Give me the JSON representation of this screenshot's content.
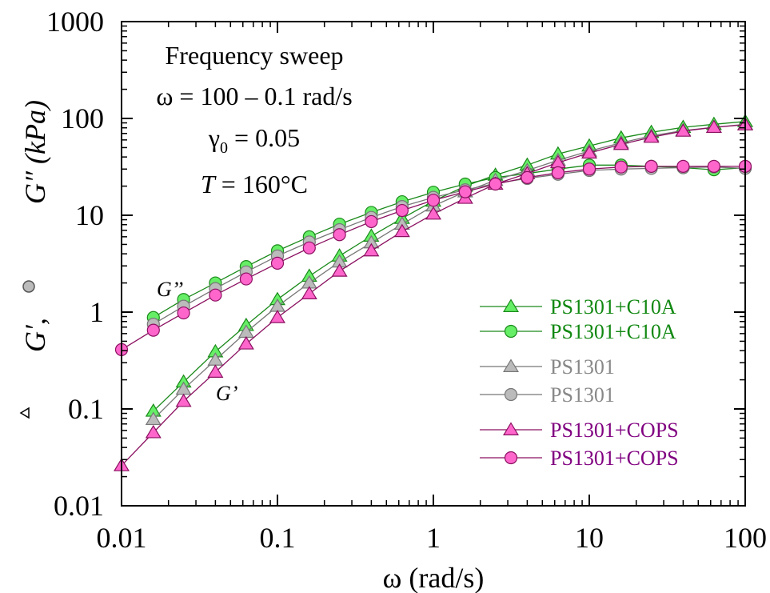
{
  "chart_data": {
    "type": "scatter",
    "title": "",
    "xlabel": "ω (rad/s)",
    "ylabel_parts": {
      "prefix": "G′,",
      "suffix": "G″ (kPa)"
    },
    "x_scale": "log",
    "y_scale": "log",
    "xlim": [
      0.01,
      100
    ],
    "ylim": [
      0.01,
      1000
    ],
    "x_ticks": [
      {
        "value": 0.01,
        "label": "0.01"
      },
      {
        "value": 0.1,
        "label": "0.1"
      },
      {
        "value": 1,
        "label": "1"
      },
      {
        "value": 10,
        "label": "10"
      },
      {
        "value": 100,
        "label": "100"
      }
    ],
    "y_ticks": [
      {
        "value": 0.01,
        "label": "0.01"
      },
      {
        "value": 0.1,
        "label": "0.1"
      },
      {
        "value": 1,
        "label": "1"
      },
      {
        "value": 10,
        "label": "10"
      },
      {
        "value": 100,
        "label": "100"
      },
      {
        "value": 1000,
        "label": "1000"
      }
    ],
    "grid": false,
    "legend_position": "lower-right",
    "annotations": {
      "line1": "Frequency sweep",
      "line2": "ω = 100 – 0.1 rad/s",
      "line3_symbol": "γ",
      "line3_sub": "0",
      "line3_value": " = 0.05",
      "line4_var": "T",
      "line4_value": " = 160°C",
      "gpp_label": "G’’",
      "gp_label": "G’"
    },
    "series": [
      {
        "name": "PS1301+C10A",
        "quantity": "G′",
        "marker": "triangle",
        "color": "#66ee66",
        "edge": "#1a8a1a",
        "text_color": "#118811",
        "x": [
          0.016,
          0.025,
          0.04,
          0.063,
          0.1,
          0.16,
          0.25,
          0.4,
          0.63,
          1.0,
          1.6,
          2.5,
          4.0,
          6.3,
          10,
          16,
          25,
          40,
          63,
          100
        ],
        "y": [
          0.095,
          0.19,
          0.39,
          0.73,
          1.35,
          2.35,
          3.8,
          6.1,
          9.3,
          14,
          20,
          26,
          33,
          43,
          52,
          63,
          72,
          81,
          87,
          93
        ]
      },
      {
        "name": "PS1301+C10A",
        "quantity": "G″",
        "marker": "circle",
        "color": "#66ee66",
        "edge": "#1a8a1a",
        "text_color": "#118811",
        "x": [
          0.016,
          0.025,
          0.04,
          0.063,
          0.1,
          0.16,
          0.25,
          0.4,
          0.63,
          1.0,
          1.6,
          2.5,
          4.0,
          6.3,
          10,
          16,
          25,
          40,
          63,
          100
        ],
        "y": [
          0.88,
          1.35,
          2.0,
          2.95,
          4.3,
          6.0,
          8.1,
          10.7,
          13.8,
          17.3,
          21,
          24.5,
          27,
          30,
          33,
          33,
          32,
          31,
          29.5,
          31
        ]
      },
      {
        "name": "PS1301",
        "quantity": "G′",
        "marker": "triangle",
        "color": "#bbbbbb",
        "edge": "#777777",
        "text_color": "#888888",
        "x": [
          0.016,
          0.025,
          0.04,
          0.063,
          0.1,
          0.16,
          0.25,
          0.4,
          0.63,
          1.0,
          1.6,
          2.5,
          4.0,
          6.3,
          10,
          16,
          25,
          40,
          63,
          100
        ],
        "y": [
          0.078,
          0.16,
          0.32,
          0.62,
          1.15,
          2.0,
          3.3,
          5.2,
          8.1,
          12.5,
          17.5,
          23,
          29,
          37,
          46,
          56,
          66,
          75,
          81,
          87
        ]
      },
      {
        "name": "PS1301",
        "quantity": "G″",
        "marker": "circle",
        "color": "#bbbbbb",
        "edge": "#777777",
        "text_color": "#888888",
        "x": [
          0.016,
          0.025,
          0.04,
          0.063,
          0.1,
          0.16,
          0.25,
          0.4,
          0.63,
          1.0,
          1.6,
          2.5,
          4.0,
          6.3,
          10,
          16,
          25,
          40,
          63,
          100
        ],
        "y": [
          0.75,
          1.15,
          1.75,
          2.6,
          3.8,
          5.3,
          7.1,
          9.5,
          12.3,
          15.3,
          18.3,
          21.3,
          24,
          26.5,
          29,
          30,
          30.5,
          31,
          31.5,
          30.5
        ]
      },
      {
        "name": "PS1301+COPS",
        "quantity": "G′",
        "marker": "triangle",
        "color": "#ff66cc",
        "edge": "#8a1060",
        "text_color": "#800080",
        "x": [
          0.01,
          0.016,
          0.025,
          0.04,
          0.063,
          0.1,
          0.16,
          0.25,
          0.4,
          0.63,
          1.0,
          1.6,
          2.5,
          4.0,
          6.3,
          10,
          16,
          25,
          40,
          63,
          100
        ],
        "y": [
          0.026,
          0.057,
          0.12,
          0.24,
          0.47,
          0.88,
          1.55,
          2.65,
          4.3,
          6.8,
          10.3,
          15,
          21,
          27,
          35,
          44,
          54,
          64,
          74,
          81,
          86
        ]
      },
      {
        "name": "PS1301+COPS",
        "quantity": "G″",
        "marker": "circle",
        "color": "#ff66cc",
        "edge": "#8a1060",
        "text_color": "#800080",
        "x": [
          0.01,
          0.016,
          0.025,
          0.04,
          0.063,
          0.1,
          0.16,
          0.25,
          0.4,
          0.63,
          1.0,
          1.6,
          2.5,
          4.0,
          6.3,
          10,
          16,
          25,
          40,
          63,
          100
        ],
        "y": [
          0.41,
          0.65,
          0.98,
          1.5,
          2.2,
          3.2,
          4.6,
          6.3,
          8.6,
          11.2,
          14.3,
          17.5,
          21,
          24.5,
          27.5,
          30,
          31.5,
          32,
          32,
          32,
          32
        ]
      }
    ]
  }
}
